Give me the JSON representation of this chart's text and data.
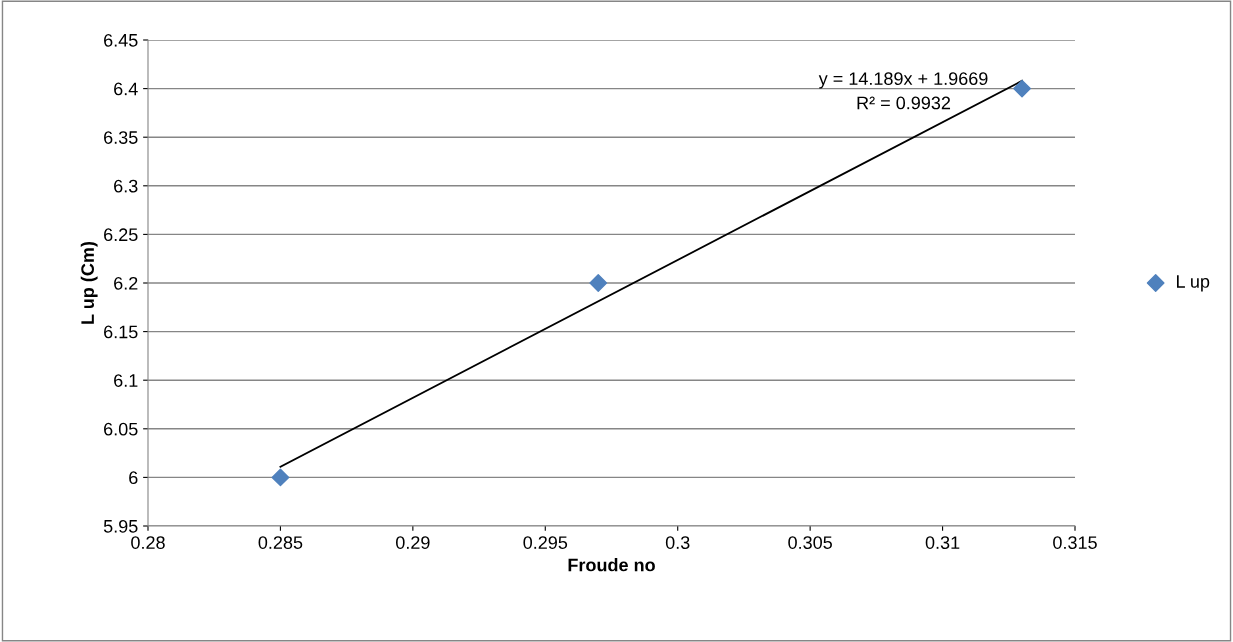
{
  "chart_data": {
    "type": "scatter",
    "xlabel": "Froude no",
    "ylabel": "L up (Cm)",
    "x": [
      0.285,
      0.297,
      0.313
    ],
    "series": [
      {
        "name": "L up",
        "color": "#4f81bd",
        "values": [
          6.0,
          6.2,
          6.4
        ],
        "marker": "diamond"
      },
      {
        "type": "line",
        "color": "#000000",
        "x": [
          0.285,
          0.313
        ],
        "values": [
          6.011,
          6.408
        ],
        "marker": "none"
      }
    ],
    "annotations": [
      "y = 14.189x + 1.9669",
      "R² = 0.9932"
    ],
    "xlim": [
      0.28,
      0.315
    ],
    "xticks": [
      0.28,
      0.285,
      0.29,
      0.295,
      0.3,
      0.305,
      0.31,
      0.315
    ],
    "ylim": [
      5.95,
      6.45
    ],
    "yticks": [
      5.95,
      6,
      6.05,
      6.1,
      6.15,
      6.2,
      6.25,
      6.3,
      6.35,
      6.4,
      6.45
    ],
    "grid": "y",
    "legend": "right"
  }
}
